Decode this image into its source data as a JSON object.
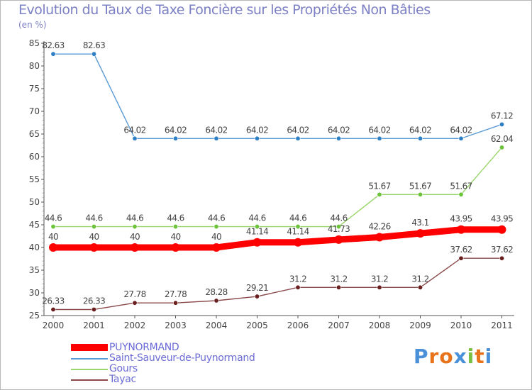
{
  "title": "Evolution du Taux de Taxe Foncière sur les Propriétés Non Bâties",
  "unit_label": "(en %)",
  "logo_text": "Proxiti",
  "colors": {
    "title": "#7c80c4",
    "axis": "#555555",
    "label": "#444444",
    "background": "#ffffff"
  },
  "chart_data": {
    "type": "line",
    "title": "Evolution du Taux de Taxe Foncière sur les Propriétés Non Bâties",
    "ylabel": "(en %)",
    "xlabel": "",
    "ylim": [
      25,
      85
    ],
    "yticks": [
      "25",
      "30",
      "35",
      "40",
      "45",
      "50",
      "55",
      "60",
      "65",
      "70",
      "75",
      "80",
      "85"
    ],
    "grid": false,
    "legend_position": "bottom-left",
    "categories": [
      "2000",
      "2001",
      "2002",
      "2003",
      "2004",
      "2005",
      "2006",
      "2007",
      "2008",
      "2009",
      "2010",
      "2011"
    ],
    "series": [
      {
        "name": "PUYNORMAND",
        "color": "#ff0000",
        "marker": "#ff0000",
        "emphasis": true,
        "values": [
          40,
          40,
          40,
          40,
          40,
          41.14,
          41.14,
          41.73,
          42.26,
          43.1,
          43.95,
          43.95
        ],
        "labels": [
          "40",
          "40",
          "40",
          "40",
          "40",
          "41.14",
          "41.14",
          "41.73",
          "42.26",
          "43.1",
          "43.95",
          "43.95"
        ]
      },
      {
        "name": "Saint-Sauveur-de-Puynormand",
        "color": "#5b9bd5",
        "marker": "#2e7fc4",
        "emphasis": false,
        "values": [
          82.63,
          82.63,
          64.02,
          64.02,
          64.02,
          64.02,
          64.02,
          64.02,
          64.02,
          64.02,
          64.02,
          67.12
        ],
        "labels": [
          "82.63",
          "82.63",
          "64.02",
          "64.02",
          "64.02",
          "64.02",
          "64.02",
          "64.02",
          "64.02",
          "64.02",
          "64.02",
          "67.12"
        ]
      },
      {
        "name": "Gours",
        "color": "#99d66b",
        "marker": "#6cc33a",
        "emphasis": false,
        "values": [
          44.6,
          44.6,
          44.6,
          44.6,
          44.6,
          44.6,
          44.6,
          44.6,
          51.67,
          51.67,
          51.67,
          62.04
        ],
        "labels": [
          "44.6",
          "44.6",
          "44.6",
          "44.6",
          "44.6",
          "44.6",
          "44.6",
          "44.6",
          "51.67",
          "51.67",
          "51.67",
          "62.04"
        ]
      },
      {
        "name": "Tayac",
        "color": "#8b4a4a",
        "marker": "#6a1f1f",
        "emphasis": false,
        "values": [
          26.33,
          26.33,
          27.78,
          27.78,
          28.28,
          29.21,
          31.2,
          31.2,
          31.2,
          31.2,
          37.62,
          37.62
        ],
        "labels": [
          "26.33",
          "26.33",
          "27.78",
          "27.78",
          "28.28",
          "29.21",
          "31.2",
          "31.2",
          "31.2",
          "31.2",
          "37.62",
          "37.62"
        ]
      }
    ]
  }
}
